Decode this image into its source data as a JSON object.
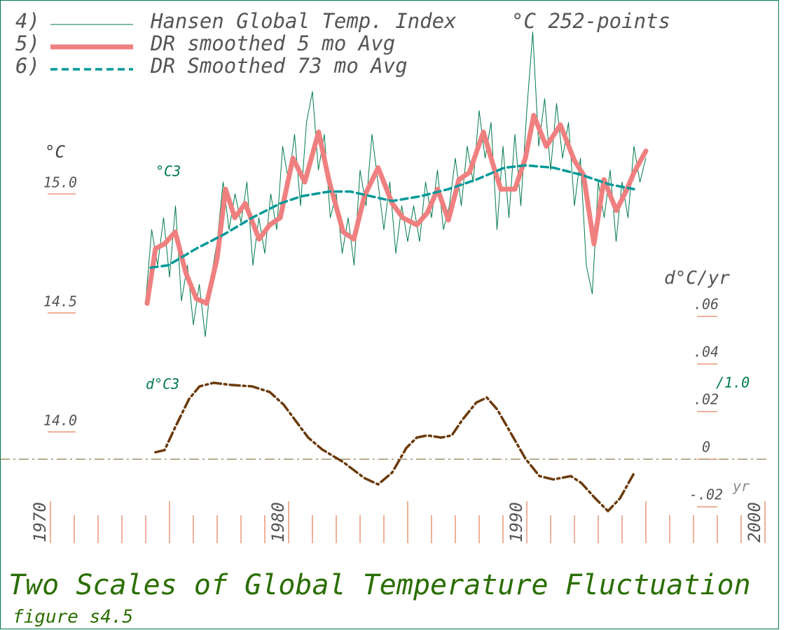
{
  "chart_data": {
    "type": "line",
    "title": "Two Scales of Global Temperature Fluctuation",
    "subtitle": "figure s4.5",
    "ylabel": "°C",
    "y2label": "d°C/yr",
    "legend_note": "°C 252-points",
    "annotations": [
      "°C3",
      "d°C3",
      "/1.0",
      "yr"
    ],
    "xlim": [
      1970,
      2000
    ],
    "xticks": [
      1970,
      1971,
      1972,
      1973,
      1974,
      1975,
      1976,
      1977,
      1978,
      1979,
      1980,
      1981,
      1982,
      1983,
      1984,
      1985,
      1986,
      1987,
      1988,
      1989,
      1990,
      1991,
      1992,
      1993,
      1994,
      1995,
      1996,
      1997,
      1998,
      1999,
      2000
    ],
    "xtick_labels": [
      1970,
      1980,
      1990,
      2000
    ],
    "ylim": [
      13.5,
      15.7
    ],
    "yticks": [
      {
        "value": 14,
        "label": "14.0"
      },
      14.5,
      {
        "value": 15,
        "label": "15.0"
      }
    ],
    "y2lim": [
      -0.04,
      0.07
    ],
    "y2ticks": [
      {
        "value": 0.06,
        "label": ".06"
      },
      {
        "value": 0.04,
        "label": ".04"
      },
      {
        "value": 0.02,
        "label": ".02"
      },
      0,
      {
        "value": -0.02,
        "label": "-.02"
      }
    ],
    "series": [
      {
        "name": "Hansen Global Temp. Index",
        "label_number": "4)",
        "color": "#007a4a",
        "style": "solid",
        "width": 1,
        "x": [
          1974,
          1974.25,
          1974.5,
          1974.75,
          1975,
          1975.25,
          1975.5,
          1975.75,
          1976,
          1976.25,
          1976.5,
          1976.75,
          1977,
          1977.25,
          1977.5,
          1977.75,
          1978,
          1978.25,
          1978.5,
          1978.75,
          1979,
          1979.25,
          1979.5,
          1979.75,
          1980,
          1980.25,
          1980.5,
          1980.75,
          1981,
          1981.25,
          1981.5,
          1981.75,
          1982,
          1982.25,
          1982.5,
          1982.75,
          1983,
          1983.25,
          1983.5,
          1983.75,
          1984,
          1984.25,
          1984.5,
          1984.75,
          1985,
          1985.25,
          1985.5,
          1985.75,
          1986,
          1986.25,
          1986.5,
          1986.75,
          1987,
          1987.25,
          1987.5,
          1987.75,
          1988,
          1988.25,
          1988.5,
          1988.75,
          1989,
          1989.25,
          1989.5,
          1989.75,
          1990,
          1990.25,
          1990.5,
          1990.75,
          1991,
          1991.25,
          1991.5,
          1991.75,
          1992,
          1992.25,
          1992.5,
          1992.75,
          1993,
          1993.25,
          1993.5,
          1993.75,
          1994,
          1994.25,
          1994.5,
          1994.75,
          1995
        ],
        "values": [
          14.55,
          14.85,
          14.7,
          14.9,
          14.65,
          14.95,
          14.55,
          14.7,
          14.45,
          14.62,
          14.4,
          14.65,
          14.8,
          15.05,
          14.85,
          15.0,
          14.88,
          15.05,
          14.7,
          14.9,
          14.75,
          15.0,
          14.85,
          15.2,
          15.05,
          15.25,
          14.95,
          15.3,
          15.43,
          15.1,
          15.25,
          14.9,
          15.0,
          14.75,
          14.9,
          14.7,
          15.1,
          14.95,
          15.25,
          15.05,
          14.85,
          15.05,
          14.75,
          14.95,
          14.8,
          14.95,
          14.8,
          15.05,
          14.9,
          15.1,
          14.85,
          14.95,
          15.15,
          14.95,
          15.2,
          15.05,
          15.35,
          15.15,
          15.3,
          14.85,
          15.2,
          14.9,
          15.25,
          14.95,
          15.35,
          15.68,
          15.2,
          15.4,
          15.1,
          15.38,
          15.15,
          15.3,
          14.95,
          15.15,
          14.7,
          14.58,
          15.05,
          14.9,
          15.1,
          14.8,
          15.05,
          14.9,
          15.2,
          15.05,
          15.15
        ]
      },
      {
        "name": "DR smoothed 5 mo Avg",
        "label_number": "5)",
        "color": "#f08080",
        "style": "solid",
        "width": 7,
        "x": [
          1974.06,
          1974.41,
          1974.79,
          1975.24,
          1975.68,
          1976.12,
          1976.56,
          1977,
          1977.35,
          1977.74,
          1978.18,
          1978.76,
          1979.21,
          1979.65,
          1980.18,
          1980.68,
          1981.26,
          1981.71,
          1982.29,
          1982.74,
          1983.18,
          1983.76,
          1984.35,
          1984.79,
          1985.38,
          1985.82,
          1986.26,
          1986.71,
          1987.15,
          1987.59,
          1988.18,
          1988.62,
          1988.91,
          1989.5,
          1989.94,
          1990.29,
          1990.82,
          1991.41,
          1992,
          1992.38,
          1992.82,
          1993.24,
          1993.76,
          1994.21,
          1994.5,
          1995
        ],
        "values": [
          14.54,
          14.77,
          14.79,
          14.84,
          14.67,
          14.56,
          14.54,
          14.73,
          15.02,
          14.9,
          14.96,
          14.81,
          14.87,
          14.9,
          15.15,
          15.05,
          15.26,
          15.05,
          14.84,
          14.81,
          14.99,
          15.11,
          14.96,
          14.9,
          14.87,
          14.92,
          15.02,
          14.89,
          15.06,
          15.09,
          15.26,
          15.11,
          15.02,
          15.02,
          15.15,
          15.33,
          15.2,
          15.29,
          15.14,
          15.08,
          14.79,
          15.06,
          14.93,
          15.02,
          15.09,
          15.18
        ]
      },
      {
        "name": "DR Smoothed 73 mo Avg",
        "label_number": "6)",
        "color": "#009999",
        "style": "dashed",
        "width": 3.5,
        "x": [
          1974.21,
          1974.94,
          1976.12,
          1977.29,
          1978.47,
          1979.65,
          1980.53,
          1981.71,
          1982.59,
          1983.47,
          1984.35,
          1985.53,
          1986.71,
          1987.88,
          1989.06,
          1989.94,
          1991.12,
          1992.29,
          1993.47,
          1994.5
        ],
        "values": [
          14.69,
          14.7,
          14.77,
          14.83,
          14.9,
          14.96,
          14.99,
          15.01,
          15.01,
          14.99,
          14.97,
          14.99,
          15.02,
          15.06,
          15.11,
          15.12,
          15.11,
          15.08,
          15.04,
          15.02
        ]
      },
      {
        "color": "#6b3a0a",
        "style": "dashdot",
        "width": 3.5,
        "axis": "y2",
        "x": [
          1974.41,
          1974.79,
          1975.24,
          1975.82,
          1976.26,
          1976.85,
          1977.59,
          1978.47,
          1979.21,
          1979.79,
          1980.38,
          1980.82,
          1981.41,
          1982.29,
          1983.18,
          1983.76,
          1984.35,
          1984.94,
          1985.38,
          1985.82,
          1986.41,
          1986.85,
          1987.29,
          1987.88,
          1988.32,
          1988.76,
          1989.35,
          1989.94,
          1990.53,
          1991.12,
          1991.85,
          1992.29,
          1992.88,
          1993.41,
          1993.91,
          1994.5
        ],
        "values": [
          0.0029,
          0.0038,
          0.0135,
          0.0253,
          0.0306,
          0.0321,
          0.0312,
          0.0306,
          0.0282,
          0.0229,
          0.015,
          0.0091,
          0.0041,
          -0.0012,
          -0.0079,
          -0.0106,
          -0.0056,
          0.0047,
          0.0091,
          0.01,
          0.0091,
          0.01,
          0.0165,
          0.0238,
          0.0259,
          0.0209,
          0.0106,
          0.0003,
          -0.0071,
          -0.0085,
          -0.0071,
          -0.01,
          -0.0165,
          -0.0218,
          -0.0165,
          -0.0059
        ]
      }
    ]
  }
}
